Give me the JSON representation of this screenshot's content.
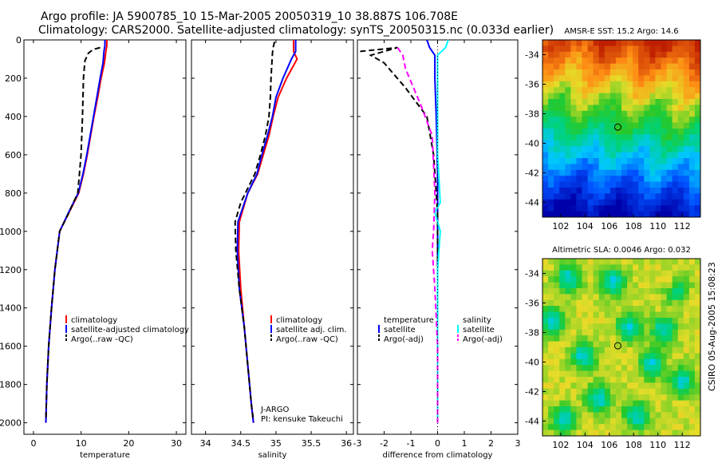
{
  "header": {
    "title_line1": "Argo profile: JA 5900785_10 15-Mar-2005 20050319_10 38.887S 106.708E",
    "title_line2": "Climatology: CARS2000. Satellite-adjusted climatology: synTS_20050315.nc (0.033d earlier)"
  },
  "footer_stamp": "CSIRO 05-Aug-2005 15:08:23",
  "colors": {
    "climatology": "#ff0000",
    "satellite": "#0000ff",
    "argo": "#000000",
    "salinity_satellite": "#00ffff",
    "salinity_argo": "#ff00ff"
  },
  "chart_data": [
    {
      "type": "line",
      "xlabel": "temperature",
      "ylabel": "",
      "xlim": [
        -2,
        32
      ],
      "ylim": [
        2060,
        0
      ],
      "y_reversed": true,
      "xticks": [
        0,
        10,
        20,
        30
      ],
      "yticks": [
        0,
        200,
        400,
        600,
        800,
        1000,
        1200,
        1400,
        1600,
        1800,
        2000
      ],
      "legend": [
        "climatology",
        "satellite-adjusted climatology",
        "Argo(..raw -QC)"
      ],
      "legend_placement": "lower-center",
      "series": [
        {
          "name": "climatology",
          "style": "solid",
          "color": "#ff0000",
          "points": [
            [
              15.4,
              0
            ],
            [
              15.4,
              30
            ],
            [
              15.2,
              60
            ],
            [
              14.9,
              120
            ],
            [
              14.2,
              200
            ],
            [
              13.5,
              300
            ],
            [
              12.7,
              400
            ],
            [
              12.0,
              500
            ],
            [
              11.3,
              600
            ],
            [
              10.5,
              700
            ],
            [
              9.5,
              800
            ],
            [
              7.5,
              900
            ],
            [
              5.5,
              1000
            ],
            [
              4.5,
              1200
            ],
            [
              3.8,
              1400
            ],
            [
              3.2,
              1600
            ],
            [
              2.8,
              1800
            ],
            [
              2.6,
              2000
            ]
          ]
        },
        {
          "name": "satellite-adjusted climatology",
          "style": "solid",
          "color": "#0000ff",
          "points": [
            [
              15.0,
              0
            ],
            [
              15.0,
              30
            ],
            [
              14.8,
              60
            ],
            [
              14.6,
              120
            ],
            [
              14.0,
              200
            ],
            [
              13.3,
              300
            ],
            [
              12.6,
              400
            ],
            [
              11.9,
              500
            ],
            [
              11.2,
              600
            ],
            [
              10.4,
              700
            ],
            [
              9.4,
              800
            ],
            [
              7.4,
              900
            ],
            [
              5.5,
              1000
            ],
            [
              4.5,
              1200
            ],
            [
              3.8,
              1400
            ],
            [
              3.2,
              1600
            ],
            [
              2.8,
              1800
            ],
            [
              2.6,
              2000
            ]
          ]
        },
        {
          "name": "Argo(..raw -QC)",
          "style": "dashed",
          "color": "#000000",
          "points": [
            [
              14.0,
              40
            ],
            [
              12.5,
              50
            ],
            [
              11.5,
              70
            ],
            [
              10.8,
              110
            ],
            [
              10.5,
              200
            ],
            [
              10.3,
              400
            ],
            [
              10.0,
              600
            ],
            [
              9.3,
              800
            ],
            [
              7.5,
              900
            ],
            [
              5.5,
              1000
            ],
            [
              4.5,
              1200
            ],
            [
              3.8,
              1400
            ],
            [
              3.2,
              1600
            ],
            [
              2.8,
              1800
            ],
            [
              2.6,
              1990
            ]
          ]
        }
      ]
    },
    {
      "type": "line",
      "xlabel": "salinity",
      "xlim": [
        33.8,
        36.1
      ],
      "ylim": [
        2060,
        0
      ],
      "y_reversed": true,
      "xticks": [
        34,
        34.5,
        35,
        35.5,
        36
      ],
      "legend": [
        "climatology",
        "satellite adj. clim.",
        "Argo(..raw -QC)"
      ],
      "legend_placement": "lower-right",
      "annotation": [
        "J-ARGO",
        "PI: kensuke Takeuchi"
      ],
      "series": [
        {
          "name": "climatology",
          "style": "solid",
          "color": "#ff0000",
          "points": [
            [
              35.25,
              0
            ],
            [
              35.25,
              60
            ],
            [
              35.3,
              100
            ],
            [
              35.15,
              200
            ],
            [
              35.03,
              300
            ],
            [
              34.96,
              400
            ],
            [
              34.9,
              500
            ],
            [
              34.82,
              600
            ],
            [
              34.74,
              700
            ],
            [
              34.6,
              800
            ],
            [
              34.48,
              950
            ],
            [
              34.47,
              1100
            ],
            [
              34.5,
              1300
            ],
            [
              34.55,
              1500
            ],
            [
              34.6,
              1700
            ],
            [
              34.65,
              1900
            ],
            [
              34.68,
              2000
            ]
          ]
        },
        {
          "name": "satellite adj. clim.",
          "style": "solid",
          "color": "#0000ff",
          "points": [
            [
              35.28,
              0
            ],
            [
              35.28,
              60
            ],
            [
              35.22,
              100
            ],
            [
              35.1,
              200
            ],
            [
              35.0,
              300
            ],
            [
              34.95,
              400
            ],
            [
              34.88,
              500
            ],
            [
              34.8,
              600
            ],
            [
              34.73,
              700
            ],
            [
              34.6,
              800
            ],
            [
              34.46,
              950
            ],
            [
              34.45,
              1100
            ],
            [
              34.48,
              1300
            ],
            [
              34.55,
              1500
            ],
            [
              34.6,
              1700
            ],
            [
              34.65,
              1900
            ],
            [
              34.68,
              2000
            ]
          ]
        },
        {
          "name": "Argo(..raw -QC)",
          "style": "dashed",
          "color": "#000000",
          "points": [
            [
              34.98,
              10
            ],
            [
              34.96,
              40
            ],
            [
              34.95,
              70
            ],
            [
              34.93,
              200
            ],
            [
              34.92,
              300
            ],
            [
              34.9,
              400
            ],
            [
              34.85,
              500
            ],
            [
              34.78,
              600
            ],
            [
              34.7,
              700
            ],
            [
              34.5,
              850
            ],
            [
              34.42,
              950
            ],
            [
              34.43,
              1100
            ],
            [
              34.48,
              1300
            ],
            [
              34.55,
              1500
            ],
            [
              34.6,
              1700
            ],
            [
              34.65,
              1900
            ],
            [
              34.68,
              1990
            ]
          ]
        }
      ]
    },
    {
      "type": "line",
      "xlabel": "difference from climatology",
      "xlim": [
        -3,
        3
      ],
      "ylim": [
        2060,
        0
      ],
      "y_reversed": true,
      "xticks": [
        -3,
        -2,
        -1,
        0,
        1,
        2,
        3
      ],
      "legend_left": [
        "temperature",
        "satellite",
        "Argo(-adj)"
      ],
      "legend_right": [
        "salinity",
        "satellite",
        "Argo(-adj)"
      ],
      "legend_placement": "lower-center",
      "series": [
        {
          "name": "satellite",
          "quantity": "temperature",
          "style": "solid",
          "color": "#0000ff",
          "points": [
            [
              -0.4,
              0
            ],
            [
              -0.3,
              40
            ],
            [
              -0.1,
              80
            ],
            [
              -0.1,
              200
            ],
            [
              -0.05,
              400
            ],
            [
              0,
              700
            ],
            [
              0,
              2000
            ]
          ]
        },
        {
          "name": "Argo(-adj)",
          "quantity": "temperature",
          "style": "dashed",
          "color": "#000000",
          "points": [
            [
              -2.9,
              60
            ],
            [
              -1.5,
              40
            ],
            [
              -2.5,
              80
            ],
            [
              -2.0,
              120
            ],
            [
              -1.2,
              250
            ],
            [
              -0.4,
              400
            ],
            [
              -0.15,
              600
            ],
            [
              0,
              900
            ],
            [
              0,
              2000
            ]
          ]
        },
        {
          "name": "satellite",
          "quantity": "salinity",
          "style": "solid",
          "color": "#00ffff",
          "points": [
            [
              0.4,
              0
            ],
            [
              0.3,
              40
            ],
            [
              0,
              80
            ],
            [
              0,
              600
            ],
            [
              0.1,
              850
            ],
            [
              -0.1,
              900
            ],
            [
              0.1,
              1000
            ],
            [
              0,
              1200
            ],
            [
              0,
              2000
            ]
          ]
        },
        {
          "name": "Argo(-adj)",
          "quantity": "salinity",
          "style": "dashed",
          "color": "#ff00ff",
          "points": [
            [
              -1.5,
              40
            ],
            [
              -1.3,
              80
            ],
            [
              -1.2,
              150
            ],
            [
              -0.6,
              350
            ],
            [
              -0.2,
              500
            ],
            [
              -0.1,
              800
            ],
            [
              -0.15,
              1000
            ],
            [
              -0.2,
              1100
            ],
            [
              -0.1,
              1300
            ],
            [
              0,
              1600
            ],
            [
              0,
              2000
            ]
          ]
        }
      ]
    },
    {
      "type": "heatmap",
      "title": "AMSR-E SST: 15.2 Argo: 14.6",
      "xlim": [
        100.5,
        113.5
      ],
      "ylim": [
        -45,
        -33
      ],
      "xticks": [
        102,
        104,
        106,
        108,
        110,
        112
      ],
      "yticks": [
        -34,
        -36,
        -38,
        -40,
        -42,
        -44
      ],
      "marker": {
        "lon": 106.7,
        "lat": -38.9,
        "style": "open-circle"
      }
    },
    {
      "type": "heatmap",
      "title": "Altimetric SLA: 0.0046 Argo: 0.032",
      "xlim": [
        100.5,
        113.5
      ],
      "ylim": [
        -45,
        -33
      ],
      "xticks": [
        102,
        104,
        106,
        108,
        110,
        112
      ],
      "yticks": [
        -34,
        -36,
        -38,
        -40,
        -42,
        -44
      ],
      "marker": {
        "lon": 106.7,
        "lat": -38.9,
        "style": "open-circle"
      }
    }
  ]
}
